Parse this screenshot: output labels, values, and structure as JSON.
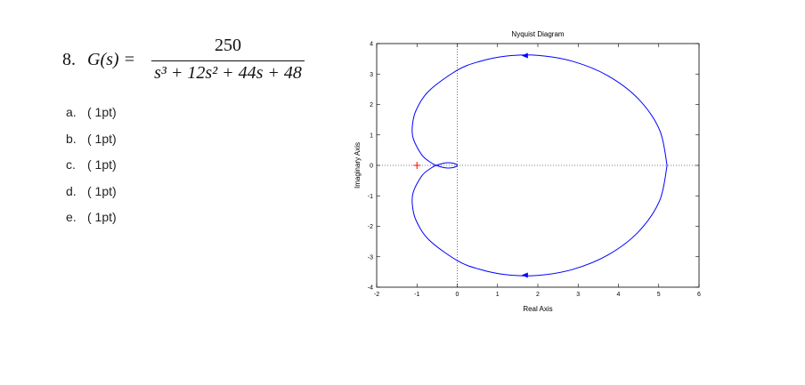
{
  "question": {
    "number": "8.",
    "lhs": "G(s) =",
    "numerator": "250",
    "denominator": "s³ + 12s² + 44s + 48",
    "items": [
      {
        "letter": "a.",
        "points": "( 1pt)"
      },
      {
        "letter": "b.",
        "points": "( 1pt)"
      },
      {
        "letter": "c.",
        "points": "( 1pt)"
      },
      {
        "letter": "d.",
        "points": "( 1pt)"
      },
      {
        "letter": "e.",
        "points": "( 1pt)"
      }
    ]
  },
  "chart_data": {
    "type": "nyquist",
    "title": "Nyquist Diagram",
    "x_label": "Real Axis",
    "y_label": "Imaginary Axis",
    "xlim": [
      -2,
      6
    ],
    "xticks": [
      -2,
      -1,
      0,
      1,
      2,
      3,
      4,
      5,
      6
    ],
    "ylim": [
      -4,
      4
    ],
    "yticks": [
      -4,
      -3,
      -2,
      -1,
      0,
      1,
      2,
      3,
      4
    ],
    "color": "#0000ff",
    "critical_point": [
      -1,
      0
    ],
    "critical_color": "#ff0000",
    "x": [
      5.208,
      5.02,
      4.494,
      3.732,
      2.862,
      1.993,
      1.203,
      0.535,
      0,
      -0.7,
      -1.026,
      -1.117,
      -1.082,
      -0.869,
      -0.641,
      -0.521,
      -0.331,
      -0.176,
      -0.046,
      0,
      -0.046,
      -0.176,
      -0.331,
      -0.521,
      -0.641,
      -0.869,
      -1.082,
      -1.117,
      -1.026,
      -0.7,
      0,
      0.535,
      1.203,
      1.993,
      2.862,
      3.732,
      4.494,
      5.02,
      5.208
    ],
    "y": [
      0,
      -1.167,
      -2.184,
      -2.948,
      -3.418,
      -3.614,
      -3.588,
      -3.406,
      -3.125,
      -2.449,
      -1.795,
      -1.254,
      -0.841,
      -0.327,
      -0.08,
      0,
      0.074,
      0.085,
      0.047,
      0,
      -0.047,
      -0.085,
      -0.074,
      0,
      0.08,
      0.327,
      0.841,
      1.254,
      1.795,
      2.449,
      3.125,
      3.406,
      3.588,
      3.614,
      3.418,
      2.948,
      2.184,
      1.167,
      0
    ]
  }
}
